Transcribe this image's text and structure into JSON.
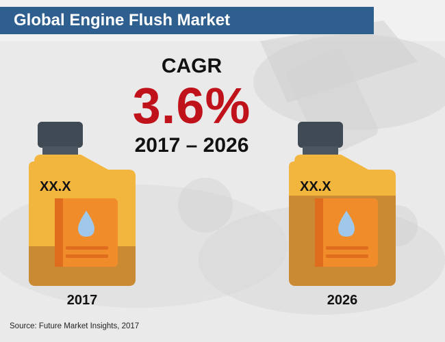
{
  "title": "Global Engine Flush Market",
  "cagr": {
    "label": "CAGR",
    "value": "3.6%",
    "period": "2017 – 2026"
  },
  "cans": [
    {
      "value": "XX.X",
      "year": "2017"
    },
    {
      "value": "XX.X",
      "year": "2026"
    }
  ],
  "source": "Source: Future Market Insights, 2017",
  "icons": [
    "oil-can-icon",
    "oil-drop-icon"
  ],
  "colors": {
    "title_bar": "#2f5f8f",
    "cagr_value": "#c0121b",
    "can_light": "#f2b63f",
    "can_dark": "#c98a33",
    "cap": "#3f4a55",
    "drop": "#9fc8ea"
  }
}
